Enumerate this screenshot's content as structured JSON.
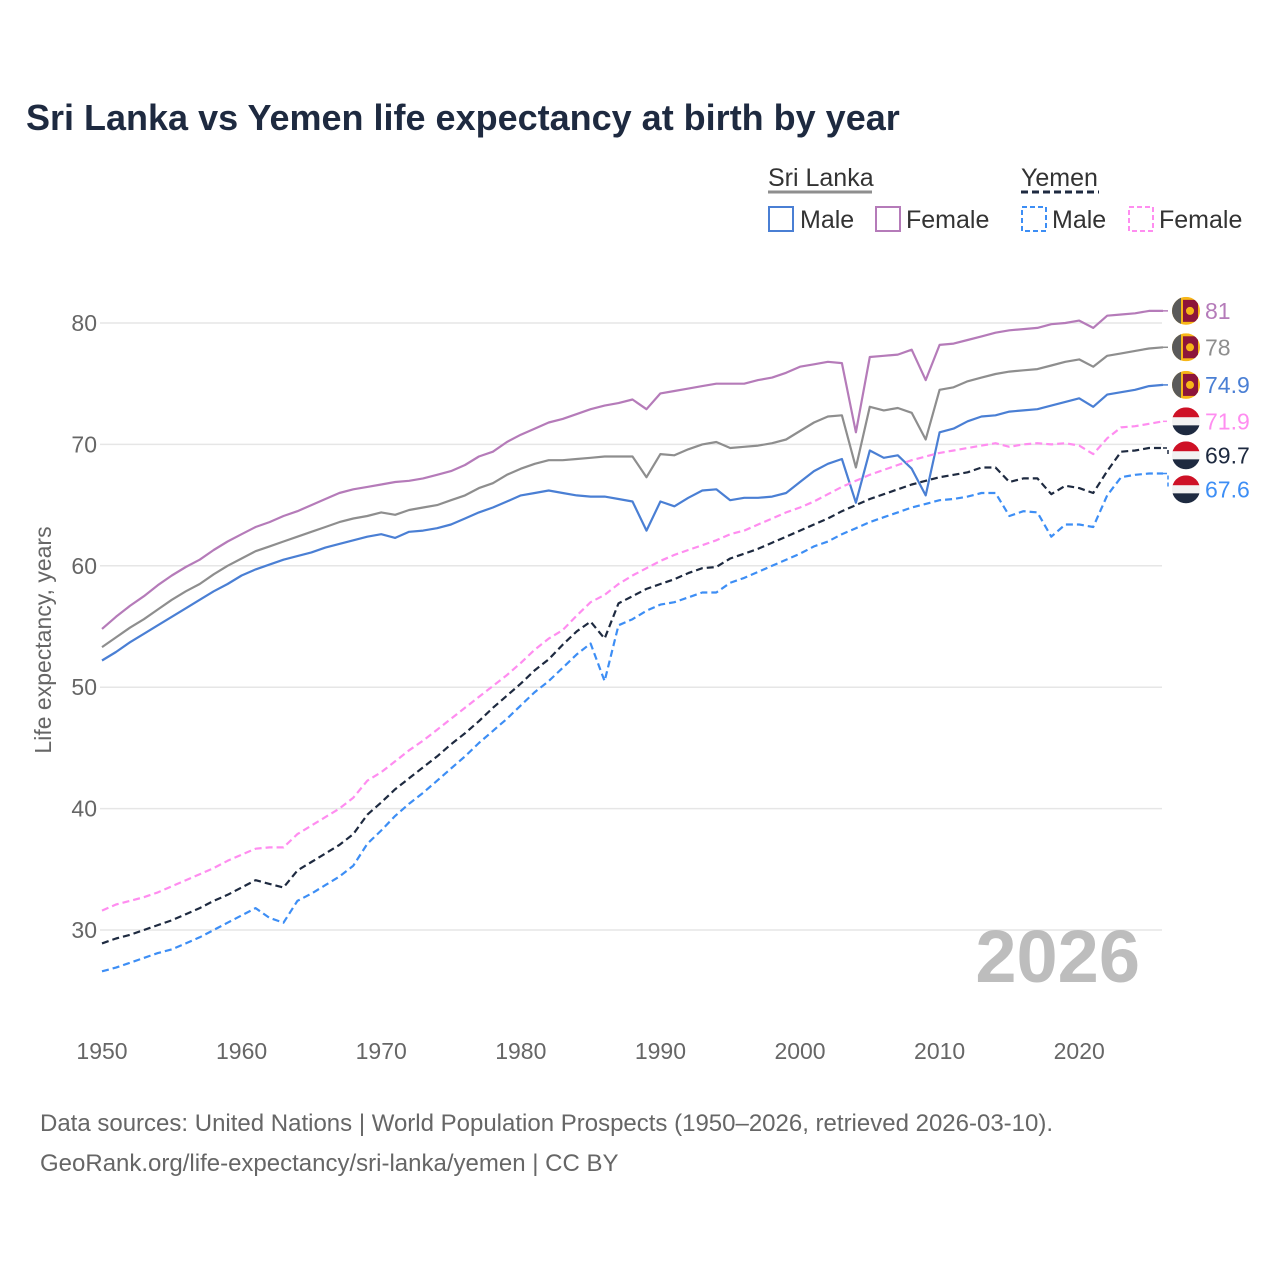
{
  "title": "Sri Lanka vs Yemen life expectancy at birth by year",
  "legend": {
    "groups": [
      {
        "name": "Sri Lanka",
        "line_color": "#8e8e8e",
        "dashed": false,
        "items": [
          {
            "label": "Male",
            "color": "#4a7fd4"
          },
          {
            "label": "Female",
            "color": "#b57bb9"
          }
        ]
      },
      {
        "name": "Yemen",
        "line_color": "#1e2a40",
        "dashed": true,
        "items": [
          {
            "label": "Male",
            "color": "#3d8ef5"
          },
          {
            "label": "Female",
            "color": "#ff8df0"
          }
        ]
      }
    ]
  },
  "current_year": "2026",
  "footer": {
    "line1": "Data sources: United Nations | World Population Prospects (1950–2026, retrieved 2026-03-10).",
    "line2": "GeoRank.org/life-expectancy/sri-lanka/yemen | CC BY"
  },
  "chart_data": {
    "type": "line",
    "title": "Sri Lanka vs Yemen life expectancy at birth by year",
    "xlabel": "",
    "ylabel": "Life expectancy, years",
    "xlim": [
      1950,
      2026
    ],
    "ylim": [
      24,
      83
    ],
    "x_ticks": [
      1950,
      1960,
      1970,
      1980,
      1990,
      2000,
      2010,
      2020
    ],
    "y_ticks": [
      30,
      40,
      50,
      60,
      70,
      80
    ],
    "grid": true,
    "legend_position": "top-right",
    "x_start": 1950,
    "series": [
      {
        "name": "Sri Lanka Female",
        "country": "Sri Lanka",
        "color": "#b57bb9",
        "dashed": false,
        "end_label": "81",
        "values": [
          54.8,
          55.8,
          56.7,
          57.5,
          58.4,
          59.2,
          59.9,
          60.5,
          61.3,
          62.0,
          62.6,
          63.2,
          63.6,
          64.1,
          64.5,
          65.0,
          65.5,
          66.0,
          66.3,
          66.5,
          66.7,
          66.9,
          67.0,
          67.2,
          67.5,
          67.8,
          68.3,
          69.0,
          69.4,
          70.2,
          70.8,
          71.3,
          71.8,
          72.1,
          72.5,
          72.9,
          73.2,
          73.4,
          73.7,
          72.9,
          74.2,
          74.4,
          74.6,
          74.8,
          75.0,
          75.0,
          75.0,
          75.3,
          75.5,
          75.9,
          76.4,
          76.6,
          76.8,
          76.7,
          71.0,
          77.2,
          77.3,
          77.4,
          77.8,
          75.3,
          78.2,
          78.3,
          78.6,
          78.9,
          79.2,
          79.4,
          79.5,
          79.6,
          79.9,
          80.0,
          80.2,
          79.6,
          80.6,
          80.7,
          80.8,
          81.0,
          81.0
        ]
      },
      {
        "name": "Sri Lanka",
        "country": "Sri Lanka",
        "color": "#8e8e8e",
        "dashed": false,
        "end_label": "78",
        "values": [
          53.3,
          54.1,
          54.9,
          55.6,
          56.4,
          57.2,
          57.9,
          58.5,
          59.3,
          60.0,
          60.6,
          61.2,
          61.6,
          62.0,
          62.4,
          62.8,
          63.2,
          63.6,
          63.9,
          64.1,
          64.4,
          64.2,
          64.6,
          64.8,
          65.0,
          65.4,
          65.8,
          66.4,
          66.8,
          67.5,
          68.0,
          68.4,
          68.7,
          68.7,
          68.8,
          68.9,
          69.0,
          69.0,
          69.0,
          67.3,
          69.2,
          69.1,
          69.6,
          70.0,
          70.2,
          69.7,
          69.8,
          69.9,
          70.1,
          70.4,
          71.1,
          71.8,
          72.3,
          72.4,
          68.1,
          73.1,
          72.8,
          73.0,
          72.6,
          70.4,
          74.5,
          74.7,
          75.2,
          75.5,
          75.8,
          76.0,
          76.1,
          76.2,
          76.5,
          76.8,
          77.0,
          76.4,
          77.3,
          77.5,
          77.7,
          77.9,
          78.0
        ]
      },
      {
        "name": "Sri Lanka Male",
        "country": "Sri Lanka",
        "color": "#4a7fd4",
        "dashed": false,
        "end_label": "74.9",
        "values": [
          52.2,
          52.9,
          53.7,
          54.4,
          55.1,
          55.8,
          56.5,
          57.2,
          57.9,
          58.5,
          59.2,
          59.7,
          60.1,
          60.5,
          60.8,
          61.1,
          61.5,
          61.8,
          62.1,
          62.4,
          62.6,
          62.3,
          62.8,
          62.9,
          63.1,
          63.4,
          63.9,
          64.4,
          64.8,
          65.3,
          65.8,
          66.0,
          66.2,
          66.0,
          65.8,
          65.7,
          65.7,
          65.5,
          65.3,
          62.9,
          65.3,
          64.9,
          65.6,
          66.2,
          66.3,
          65.4,
          65.6,
          65.6,
          65.7,
          66.0,
          66.9,
          67.8,
          68.4,
          68.8,
          65.2,
          69.5,
          68.9,
          69.1,
          68.0,
          65.8,
          71.0,
          71.3,
          71.9,
          72.3,
          72.4,
          72.7,
          72.8,
          72.9,
          73.2,
          73.5,
          73.8,
          73.1,
          74.1,
          74.3,
          74.5,
          74.8,
          74.9
        ]
      },
      {
        "name": "Yemen Female",
        "country": "Yemen",
        "color": "#ff8df0",
        "dashed": true,
        "end_label": "71.9",
        "values": [
          31.6,
          32.1,
          32.4,
          32.7,
          33.1,
          33.6,
          34.1,
          34.6,
          35.1,
          35.7,
          36.2,
          36.7,
          36.8,
          36.8,
          37.9,
          38.6,
          39.3,
          40.0,
          40.9,
          42.3,
          43.0,
          43.9,
          44.8,
          45.6,
          46.5,
          47.4,
          48.3,
          49.2,
          50.1,
          51.0,
          52.0,
          53.1,
          54.0,
          54.7,
          55.9,
          57.0,
          57.6,
          58.5,
          59.2,
          59.8,
          60.4,
          60.9,
          61.3,
          61.7,
          62.1,
          62.6,
          62.9,
          63.4,
          63.9,
          64.4,
          64.8,
          65.3,
          65.9,
          66.5,
          67.0,
          67.5,
          67.9,
          68.3,
          68.7,
          69.0,
          69.3,
          69.5,
          69.7,
          69.9,
          70.1,
          69.8,
          70.0,
          70.1,
          70.0,
          70.1,
          69.9,
          69.2,
          70.5,
          71.4,
          71.5,
          71.7,
          71.9
        ]
      },
      {
        "name": "Yemen",
        "country": "Yemen",
        "color": "#1e2a40",
        "dashed": true,
        "end_label": "69.7",
        "values": [
          28.9,
          29.3,
          29.6,
          30.0,
          30.4,
          30.8,
          31.3,
          31.8,
          32.4,
          32.9,
          33.5,
          34.1,
          33.8,
          33.5,
          34.9,
          35.6,
          36.3,
          37.0,
          37.9,
          39.5,
          40.5,
          41.6,
          42.5,
          43.4,
          44.3,
          45.3,
          46.2,
          47.2,
          48.3,
          49.3,
          50.3,
          51.4,
          52.3,
          53.5,
          54.6,
          55.4,
          54.0,
          56.9,
          57.5,
          58.1,
          58.5,
          58.9,
          59.4,
          59.8,
          59.9,
          60.6,
          61.0,
          61.4,
          61.9,
          62.4,
          62.9,
          63.4,
          63.9,
          64.5,
          65.0,
          65.5,
          65.9,
          66.3,
          66.7,
          67.0,
          67.3,
          67.5,
          67.7,
          68.1,
          68.1,
          66.9,
          67.2,
          67.2,
          65.9,
          66.6,
          66.4,
          66.0,
          67.8,
          69.4,
          69.5,
          69.7,
          69.7
        ]
      },
      {
        "name": "Yemen Male",
        "country": "Yemen",
        "color": "#3d8ef5",
        "dashed": true,
        "end_label": "67.6",
        "values": [
          26.6,
          26.9,
          27.3,
          27.7,
          28.1,
          28.4,
          28.9,
          29.4,
          30.0,
          30.6,
          31.2,
          31.8,
          31.0,
          30.6,
          32.4,
          33.0,
          33.7,
          34.4,
          35.3,
          37.1,
          38.2,
          39.4,
          40.4,
          41.3,
          42.3,
          43.3,
          44.3,
          45.4,
          46.4,
          47.4,
          48.5,
          49.6,
          50.5,
          51.6,
          52.7,
          53.6,
          50.5,
          55.1,
          55.6,
          56.3,
          56.8,
          57.0,
          57.4,
          57.8,
          57.8,
          58.6,
          59.0,
          59.5,
          60.0,
          60.5,
          61.0,
          61.6,
          62.0,
          62.6,
          63.1,
          63.6,
          64.0,
          64.4,
          64.8,
          65.1,
          65.4,
          65.5,
          65.7,
          66.0,
          66.0,
          64.1,
          64.5,
          64.4,
          62.4,
          63.4,
          63.4,
          63.2,
          65.8,
          67.3,
          67.5,
          67.6,
          67.6
        ]
      }
    ]
  }
}
